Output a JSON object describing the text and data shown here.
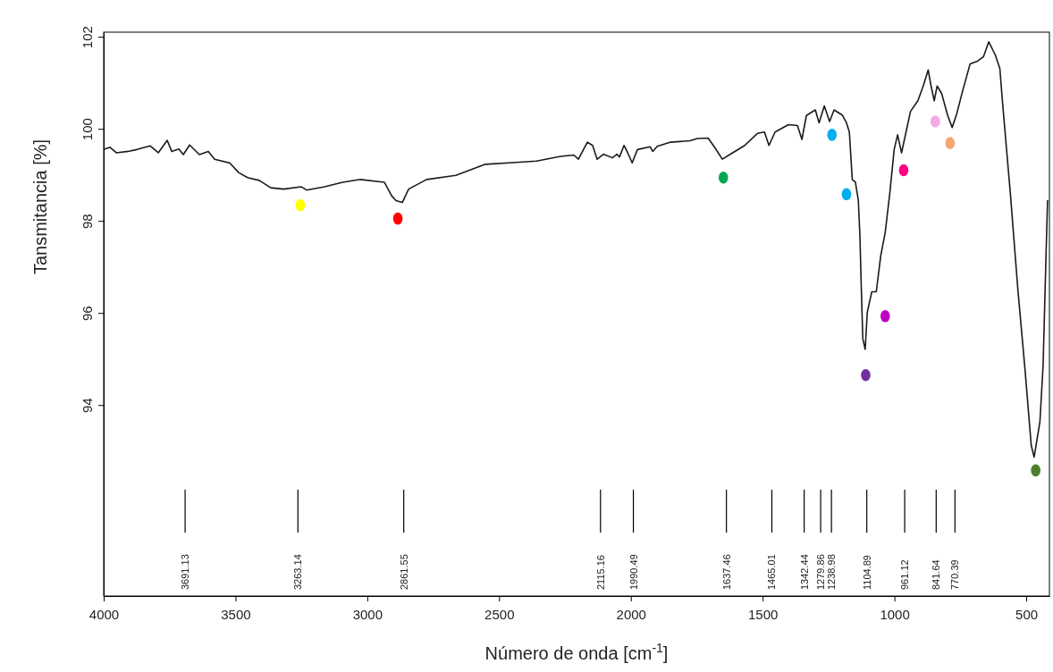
{
  "chart_data": {
    "type": "line",
    "xlabel": "Número de onda [cm$^{-1}$]",
    "ylabel": "Tansmitancia [%]",
    "xlim": [
      4000,
      412
    ],
    "xticks": [
      4000,
      3500,
      3000,
      2500,
      2000,
      1500,
      1000,
      500
    ],
    "ylim": [
      89.85,
      102.1
    ],
    "yticks": [
      94,
      96,
      98,
      100,
      102
    ],
    "grid": false,
    "series": [
      {
        "type": "line",
        "color": "#1a1a1a",
        "line_style": "solid",
        "marker": "none",
        "x": [
          4000,
          3976,
          3952,
          3908,
          3874,
          3824,
          3793,
          3759,
          3742,
          3715,
          3698,
          3674,
          3637,
          3603,
          3579,
          3522,
          3488,
          3454,
          3410,
          3366,
          3318,
          3250,
          3230,
          3162,
          3094,
          3026,
          2935,
          2908,
          2891,
          2867,
          2843,
          2775,
          2664,
          2572,
          2552,
          2436,
          2358,
          2267,
          2216,
          2199,
          2165,
          2145,
          2128,
          2104,
          2070,
          2053,
          2043,
          2026,
          2012,
          1995,
          1975,
          1927,
          1917,
          1900,
          1849,
          1775,
          1748,
          1707,
          1680,
          1653,
          1622,
          1568,
          1520,
          1493,
          1476,
          1453,
          1402,
          1368,
          1351,
          1334,
          1300,
          1286,
          1266,
          1246,
          1229,
          1198,
          1182,
          1171,
          1160,
          1148,
          1137,
          1131,
          1126,
          1120,
          1111,
          1103,
          1086,
          1069,
          1052,
          1035,
          1018,
          1001,
          988,
          973,
          956,
          939,
          911,
          889,
          872,
          861,
          849,
          838,
          821,
          798,
          781,
          764,
          741,
          713,
          685,
          662,
          642,
          617,
          600,
          589,
          560,
          532,
          504,
          481,
          470,
          448,
          436,
          425,
          419
        ],
        "values": [
          99.55,
          99.6,
          99.48,
          99.51,
          99.55,
          99.63,
          99.48,
          99.75,
          99.51,
          99.56,
          99.44,
          99.65,
          99.44,
          99.51,
          99.34,
          99.26,
          99.05,
          98.94,
          98.88,
          98.72,
          98.69,
          98.74,
          98.67,
          98.74,
          98.84,
          98.9,
          98.84,
          98.55,
          98.44,
          98.4,
          98.69,
          98.9,
          98.99,
          99.19,
          99.23,
          99.27,
          99.3,
          99.4,
          99.43,
          99.34,
          99.71,
          99.64,
          99.34,
          99.45,
          99.37,
          99.45,
          99.39,
          99.64,
          99.48,
          99.26,
          99.55,
          99.61,
          99.51,
          99.62,
          99.71,
          99.74,
          99.79,
          99.8,
          99.58,
          99.34,
          99.45,
          99.64,
          99.9,
          99.93,
          99.64,
          99.93,
          100.09,
          100.07,
          99.77,
          100.29,
          100.41,
          100.13,
          100.5,
          100.16,
          100.41,
          100.3,
          100.13,
          99.93,
          98.9,
          98.84,
          98.45,
          97.68,
          96.59,
          95.44,
          95.21,
          96.01,
          96.46,
          96.46,
          97.24,
          97.75,
          98.58,
          99.55,
          99.87,
          99.48,
          99.93,
          100.38,
          100.61,
          100.96,
          101.28,
          100.93,
          100.61,
          100.93,
          100.77,
          100.29,
          100.03,
          100.32,
          100.83,
          101.41,
          101.47,
          101.57,
          101.89,
          101.6,
          101.31,
          100.51,
          98.58,
          96.53,
          94.73,
          93.12,
          92.87,
          93.64,
          94.86,
          97.24,
          98.45
        ]
      },
      {
        "type": "scatter",
        "marker": "circle",
        "x": [
          3254,
          2884,
          1649,
          1237,
          1182,
          1109,
          1035,
          965,
          845,
          789,
          464
        ],
        "values": [
          98.34,
          98.05,
          98.94,
          99.87,
          98.58,
          94.65,
          95.93,
          99.1,
          100.16,
          99.69,
          92.58
        ],
        "colors": [
          "#ffff00",
          "#ff0000",
          "#00a651",
          "#00aeef",
          "#00aeef",
          "#7030a0",
          "#bf00bf",
          "#ff0080",
          "#f4aae8",
          "#f4a771",
          "#4e7f2d"
        ]
      }
    ],
    "annotations": [
      "3691.13",
      "3263.14",
      "2861.55",
      "2115.16",
      "1990.49",
      "1637.46",
      "1465.01",
      "1342.44",
      "1279.86",
      "1238.98",
      "1104.89",
      "961.12",
      "841.64",
      "770.39"
    ]
  }
}
